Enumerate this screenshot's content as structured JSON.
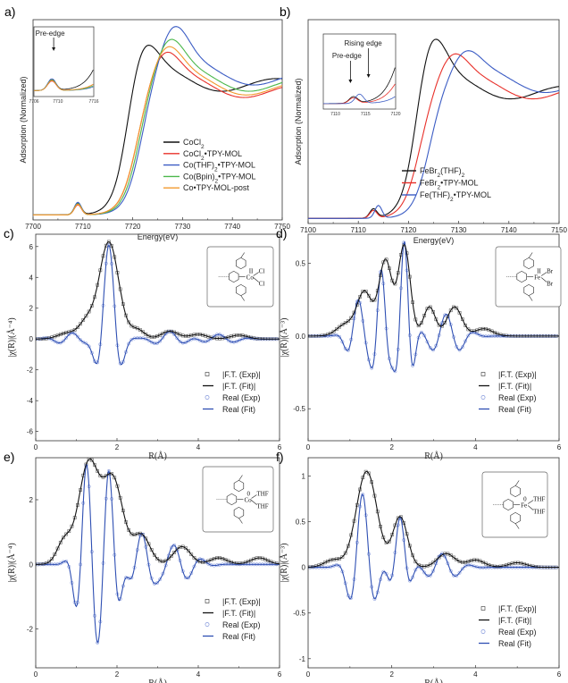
{
  "chart_data": [
    {
      "panel": "a)",
      "type": "line",
      "xlabel": "Energy(eV)",
      "ylabel": "Adsorption (Normalized)",
      "xlim": [
        7700,
        7750
      ],
      "xticks": [
        7700,
        7710,
        7720,
        7730,
        7740,
        7750
      ],
      "ylim": [
        0,
        1.6
      ],
      "legend_position": "bottom-right",
      "series": [
        {
          "name": "CoCl2",
          "color": "#111111",
          "edge": 7718.5,
          "peak_x": 7721.5,
          "peak_y": 1.45,
          "tail": 1.05,
          "pre_x": 7709,
          "pre_y": 0.09
        },
        {
          "name": "CoCl2•TPY-MOL",
          "color": "#e8302a",
          "edge": 7720.5,
          "peak_x": 7726,
          "peak_y": 1.32,
          "tail": 1.0,
          "pre_x": 7709,
          "pre_y": 0.08
        },
        {
          "name": "Co(THF)2•TPY-MOL",
          "color": "#3b5cc4",
          "edge": 7721.5,
          "peak_x": 7728,
          "peak_y": 1.52,
          "tail": 1.1,
          "pre_x": 7709,
          "pre_y": 0.1
        },
        {
          "name": "Co(Bpin)2•TPY-MOL",
          "color": "#4cb84c",
          "edge": 7721,
          "peak_x": 7727,
          "peak_y": 1.42,
          "tail": 1.05,
          "pre_x": 7709,
          "pre_y": 0.09
        },
        {
          "name": "Co•TPY-MOL-post",
          "color": "#f29a2e",
          "edge": 7720.5,
          "peak_x": 7726.5,
          "peak_y": 1.36,
          "tail": 1.02,
          "pre_x": 7709,
          "pre_y": 0.085
        }
      ],
      "inset": {
        "xlim": [
          7706,
          7716
        ],
        "xticks": [
          7706,
          7710,
          7716
        ],
        "annotation": "Pre-edge"
      }
    },
    {
      "panel": "b)",
      "type": "line",
      "xlabel": "Energy(eV)",
      "ylabel": "Adsorption (Normalized)",
      "xlim": [
        7100,
        7150
      ],
      "xticks": [
        7100,
        7110,
        7120,
        7130,
        7140,
        7150
      ],
      "ylim": [
        0,
        1.6
      ],
      "legend_position": "bottom-right",
      "series": [
        {
          "name": "FeBr2(THF)2",
          "color": "#111111",
          "edge": 7121,
          "peak_x": 7124,
          "peak_y": 1.52,
          "tail": 1.0,
          "pre_x": 7113,
          "pre_y": 0.07
        },
        {
          "name": "FeBr2•TPY-MOL",
          "color": "#e8302a",
          "edge": 7122,
          "peak_x": 7128.5,
          "peak_y": 1.3,
          "tail": 1.0,
          "pre_x": 7113,
          "pre_y": 0.06
        },
        {
          "name": "Fe(THF)2•TPY-MOL",
          "color": "#3b5cc4",
          "edge": 7124,
          "peak_x": 7131,
          "peak_y": 1.32,
          "tail": 1.05,
          "pre_x": 7114,
          "pre_y": 0.1
        }
      ],
      "inset": {
        "xlim": [
          7108,
          7120
        ],
        "xticks": [
          7110,
          7115,
          7120
        ],
        "annotations": [
          "Rising edge",
          "Pre-edge"
        ]
      }
    },
    {
      "panel": "c)",
      "type": "line",
      "xlabel": "R(Å)",
      "ylabel": "|χ(R)|(Å⁻⁴)",
      "xlim": [
        0,
        6
      ],
      "xticks": [
        0,
        2,
        4,
        6
      ],
      "ylim": [
        -6.6,
        6.8
      ],
      "yticks": [
        -6,
        -4,
        -2,
        0,
        2,
        4,
        6
      ],
      "mag_peaks": [
        [
          0.8,
          0.4,
          0.35
        ],
        [
          1.25,
          1.0,
          0.25
        ],
        [
          1.8,
          6.3,
          0.34
        ],
        [
          2.5,
          0.6,
          0.25
        ],
        [
          3.3,
          0.5,
          0.3
        ],
        [
          4.0,
          0.3,
          0.3
        ],
        [
          5.0,
          0.25,
          0.3
        ]
      ],
      "real_comp": [
        [
          1.8,
          6.1,
          0.3,
          8.0
        ],
        [
          0.9,
          0.4,
          0.5,
          9.0
        ],
        [
          3.3,
          0.5,
          0.5,
          8.0
        ],
        [
          4.5,
          0.3,
          0.6,
          8.0
        ]
      ],
      "legend": [
        "|F.T. (Exp)|",
        "|F.T. (Fit)|",
        "Real (Exp)",
        "Real (Fit)"
      ],
      "structure": {
        "metal": "Co",
        "ligands": [
          "Cl",
          "Cl"
        ],
        "ox": "II"
      }
    },
    {
      "panel": "d)",
      "type": "line",
      "xlabel": "R(Å)",
      "ylabel": "|χ(R)|(Å⁻³)",
      "xlim": [
        0,
        6
      ],
      "xticks": [
        0,
        2,
        4,
        6
      ],
      "ylim": [
        -0.72,
        0.7
      ],
      "yticks": [
        -0.5,
        0.0,
        0.5
      ],
      "mag_peaks": [
        [
          0.9,
          0.08,
          0.3
        ],
        [
          1.35,
          0.3,
          0.25
        ],
        [
          1.85,
          0.52,
          0.22
        ],
        [
          2.3,
          0.62,
          0.2
        ],
        [
          2.9,
          0.2,
          0.2
        ],
        [
          3.5,
          0.2,
          0.25
        ],
        [
          4.2,
          0.05,
          0.3
        ]
      ],
      "real_comp": [
        [
          1.75,
          0.45,
          0.22,
          12.0
        ],
        [
          2.3,
          0.65,
          0.22,
          12.0
        ],
        [
          3.3,
          0.15,
          0.5,
          9.0
        ],
        [
          1.2,
          0.25,
          0.3,
          10.0
        ]
      ],
      "legend": [
        "|F.T. (Exp)|",
        "|F.T. (Fit)|",
        "Real (Exp)",
        "Real (Fit)"
      ],
      "structure": {
        "metal": "Fe",
        "ligands": [
          "Br",
          "Br"
        ],
        "ox": "II"
      }
    },
    {
      "panel": "e)",
      "type": "line",
      "xlabel": "R(Å)",
      "ylabel": "|χ(R)|(Å⁻⁴)",
      "xlim": [
        0,
        6
      ],
      "xticks": [
        0,
        2,
        4,
        6
      ],
      "ylim": [
        -3.2,
        3.3
      ],
      "yticks": [
        -2,
        0,
        2
      ],
      "mag_peaks": [
        [
          0.7,
          0.7,
          0.25
        ],
        [
          1.3,
          3.1,
          0.35
        ],
        [
          1.9,
          2.6,
          0.35
        ],
        [
          2.6,
          0.9,
          0.3
        ],
        [
          3.6,
          0.55,
          0.3
        ],
        [
          4.5,
          0.2,
          0.3
        ],
        [
          5.5,
          0.2,
          0.3
        ]
      ],
      "real_comp": [
        [
          1.25,
          3.0,
          0.3,
          10.5
        ],
        [
          1.8,
          2.8,
          0.3,
          10.5
        ],
        [
          3.4,
          0.6,
          0.6,
          9.0
        ],
        [
          2.6,
          0.9,
          0.4,
          10.0
        ]
      ],
      "legend": [
        "|F.T. (Exp)|",
        "|F.T. (Fit)|",
        "Real (Exp)",
        "Real (Fit)"
      ],
      "structure": {
        "metal": "Co",
        "ligands": [
          "THF",
          "THF"
        ],
        "ox": "0"
      }
    },
    {
      "panel": "f)",
      "type": "line",
      "xlabel": "R(Å)",
      "ylabel": "|χ(R)|(Å⁻³)",
      "xlim": [
        0,
        6
      ],
      "xticks": [
        0,
        2,
        4,
        6
      ],
      "ylim": [
        -1.1,
        1.2
      ],
      "yticks": [
        -1.0,
        -0.5,
        0.0,
        0.5,
        1.0
      ],
      "mag_peaks": [
        [
          0.6,
          0.08,
          0.3
        ],
        [
          1.4,
          1.05,
          0.35
        ],
        [
          2.2,
          0.55,
          0.25
        ],
        [
          3.3,
          0.15,
          0.3
        ],
        [
          4.0,
          0.08,
          0.3
        ],
        [
          5.0,
          0.05,
          0.3
        ]
      ],
      "real_comp": [
        [
          1.3,
          0.8,
          0.35,
          9.0
        ],
        [
          2.2,
          0.55,
          0.25,
          10.0
        ],
        [
          3.2,
          0.15,
          0.5,
          9.0
        ]
      ],
      "legend": [
        "|F.T. (Exp)|",
        "|F.T. (Fit)|",
        "Real (Exp)",
        "Real (Fit)"
      ],
      "structure": {
        "metal": "Fe",
        "ligands": [
          "THF",
          "THF"
        ],
        "ox": "0"
      }
    }
  ],
  "colors": {
    "black": "#111111",
    "red": "#e8302a",
    "blue": "#3b5cc4",
    "green": "#4cb84c",
    "orange": "#f29a2e",
    "fit_blue": "#2e4fb3",
    "marker_blue": "#6f86d6"
  }
}
